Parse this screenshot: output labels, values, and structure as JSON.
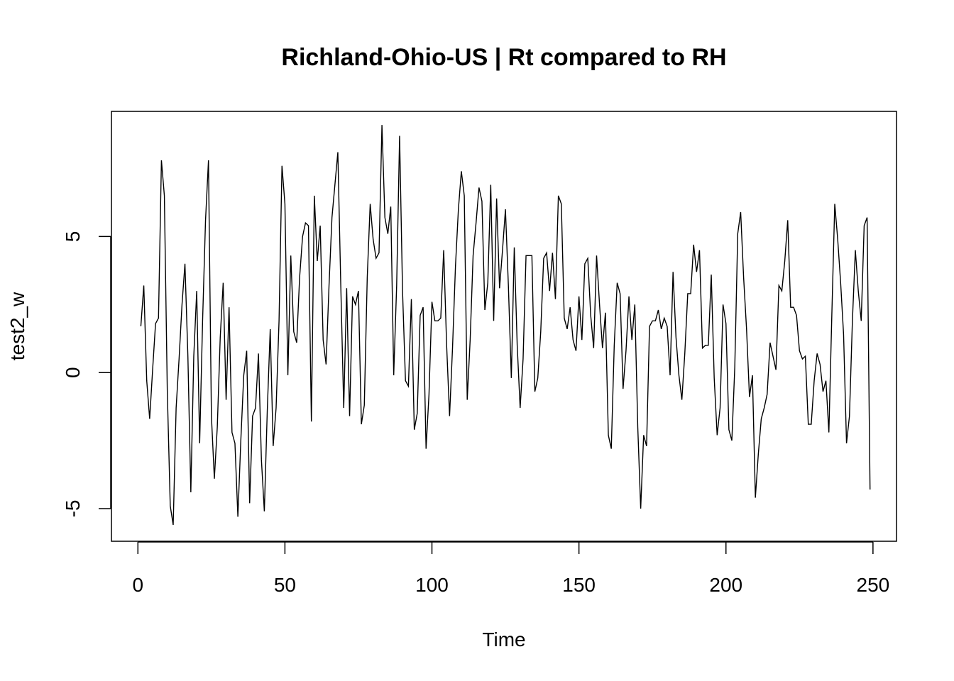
{
  "chart_data": {
    "type": "line",
    "title": "Richland-Ohio-US | Rt compared to RH",
    "xlabel": "Time",
    "ylabel": "test2_w",
    "xlim": [
      -9,
      258
    ],
    "ylim": [
      -6.2,
      9.6
    ],
    "xticks": [
      0,
      50,
      100,
      150,
      200,
      250
    ],
    "yticks": [
      -5,
      0,
      5
    ],
    "grid": false,
    "legend": "none",
    "line_color": "#000000",
    "series": [
      {
        "x_start": 1,
        "values": [
          1.7,
          3.2,
          -0.3,
          -1.7,
          0.1,
          1.8,
          2.0,
          7.8,
          6.5,
          -0.7,
          -4.9,
          -5.6,
          -1.3,
          0.5,
          2.5,
          4.0,
          0.6,
          -4.4,
          0.6,
          3.0,
          -2.6,
          1.9,
          5.6,
          7.8,
          -1.6,
          -3.9,
          -2.0,
          1.3,
          3.3,
          -1.0,
          2.4,
          -2.2,
          -2.6,
          -5.3,
          -2.5,
          -0.1,
          0.8,
          -4.8,
          -1.6,
          -1.3,
          0.7,
          -3.2,
          -5.1,
          -1.4,
          1.6,
          -2.7,
          -1.3,
          1.9,
          7.6,
          6.2,
          -0.1,
          4.3,
          1.5,
          1.1,
          3.5,
          5.0,
          5.5,
          5.4,
          -1.8,
          6.5,
          4.1,
          5.4,
          1.2,
          0.3,
          3.2,
          5.7,
          6.9,
          8.1,
          3.2,
          -1.3,
          3.1,
          -1.6,
          2.8,
          2.5,
          3.0,
          -1.9,
          -1.2,
          3.5,
          6.2,
          4.9,
          4.2,
          4.4,
          9.1,
          5.7,
          5.1,
          6.1,
          -0.1,
          3.2,
          8.7,
          3.0,
          -0.3,
          -0.5,
          2.7,
          -2.1,
          -1.5,
          2.1,
          2.4,
          -2.8,
          -0.8,
          2.6,
          1.9,
          1.9,
          2.0,
          4.5,
          1.0,
          -1.6,
          0.9,
          3.9,
          6.0,
          7.4,
          6.5,
          -1.0,
          1.2,
          4.3,
          5.5,
          6.8,
          6.3,
          2.3,
          3.3,
          6.9,
          1.9,
          6.4,
          3.1,
          4.5,
          6.0,
          3.2,
          -0.2,
          4.6,
          1.0,
          -1.3,
          0.5,
          4.3,
          4.3,
          4.3,
          -0.7,
          -0.2,
          1.5,
          4.2,
          4.4,
          3.0,
          4.4,
          2.7,
          6.5,
          6.2,
          2.0,
          1.6,
          2.4,
          1.2,
          0.8,
          2.8,
          1.2,
          4.0,
          4.2,
          2.1,
          0.9,
          4.3,
          2.5,
          0.9,
          2.2,
          -2.3,
          -2.8,
          1.0,
          3.3,
          2.9,
          -0.6,
          0.8,
          2.8,
          1.2,
          2.5,
          -2.0,
          -5.0,
          -2.3,
          -2.7,
          1.7,
          1.9,
          1.9,
          2.3,
          1.6,
          2.0,
          1.7,
          -0.1,
          3.7,
          1.3,
          -0.1,
          -1.0,
          0.7,
          2.9,
          2.9,
          4.7,
          3.7,
          4.5,
          0.9,
          1.0,
          1.0,
          3.6,
          -0.2,
          -2.3,
          -1.3,
          2.5,
          1.8,
          -2.1,
          -2.5,
          0.2,
          5.1,
          5.9,
          3.5,
          1.6,
          -0.9,
          -0.1,
          -4.6,
          -3.0,
          -1.7,
          -1.3,
          -0.8,
          1.1,
          0.6,
          0.1,
          3.2,
          3.0,
          4.1,
          5.6,
          2.4,
          2.4,
          2.1,
          0.8,
          0.5,
          0.6,
          -1.9,
          -1.9,
          -0.3,
          0.7,
          0.3,
          -0.7,
          -0.3,
          -2.2,
          2.1,
          6.2,
          4.9,
          3.3,
          1.4,
          -2.6,
          -1.6,
          1.9,
          4.5,
          3.0,
          1.9,
          5.4,
          5.7,
          -4.3
        ]
      }
    ]
  }
}
